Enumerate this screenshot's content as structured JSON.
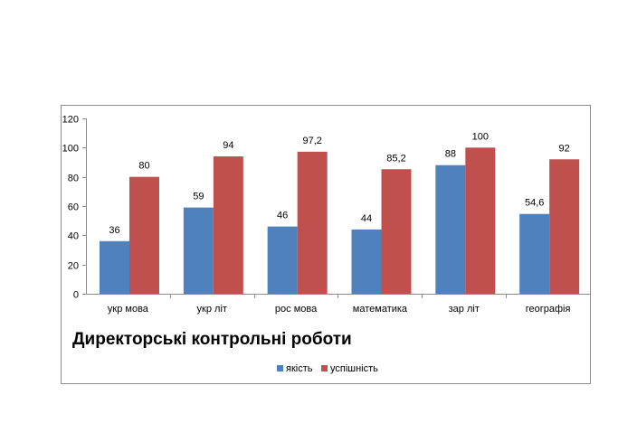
{
  "chart_data": {
    "type": "bar",
    "title": "Директорські контрольні  роботи",
    "categories": [
      "укр мова",
      "укр літ",
      "рос мова",
      "математика",
      "зар літ",
      "географія"
    ],
    "series": [
      {
        "name": "якість",
        "values": [
          36,
          59,
          46,
          44,
          88,
          54.6
        ],
        "labels": [
          "36",
          "59",
          "46",
          "44",
          "88",
          "54,6"
        ],
        "color": "#4f81bd"
      },
      {
        "name": "успішність",
        "values": [
          80,
          94,
          97.2,
          85.2,
          100,
          92
        ],
        "labels": [
          "80",
          "94",
          "97,2",
          "85,2",
          "100",
          "92"
        ],
        "color": "#c0504d"
      }
    ],
    "ylim": [
      0,
      120
    ],
    "yticks": [
      0,
      20,
      40,
      60,
      80,
      100,
      120
    ],
    "xlabel": "",
    "ylabel": "",
    "grid": false,
    "legend_position": "bottom"
  }
}
